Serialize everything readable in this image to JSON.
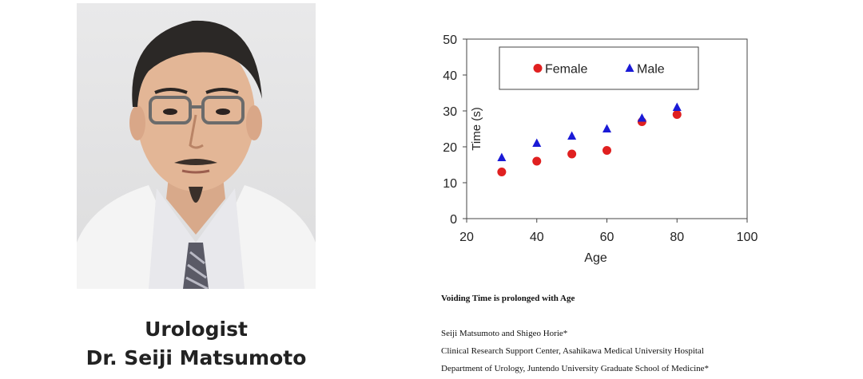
{
  "portrait": {
    "caption_line1": "Urologist",
    "caption_line2": "Dr. Seiji Matsumoto"
  },
  "chart_data": {
    "type": "scatter",
    "title": "",
    "xlabel": "Age",
    "ylabel": "Time (s)",
    "xlim": [
      20,
      100
    ],
    "ylim": [
      0,
      50
    ],
    "xticks": [
      20,
      40,
      60,
      80,
      100
    ],
    "yticks": [
      0,
      10,
      20,
      30,
      40,
      50
    ],
    "grid": false,
    "legend_position": "top",
    "series": [
      {
        "name": "Female",
        "marker": "circle",
        "color": "#e02020",
        "points": [
          [
            30,
            13
          ],
          [
            40,
            16
          ],
          [
            50,
            18
          ],
          [
            60,
            19
          ],
          [
            70,
            27
          ],
          [
            80,
            29
          ]
        ]
      },
      {
        "name": "Male",
        "marker": "triangle",
        "color": "#1a1ad6",
        "points": [
          [
            30,
            17
          ],
          [
            40,
            21
          ],
          [
            50,
            23
          ],
          [
            60,
            25
          ],
          [
            70,
            28
          ],
          [
            80,
            31
          ]
        ]
      }
    ]
  },
  "paper": {
    "title": "Voiding Time is prolonged with Age",
    "authors": "Seiji Matsumoto and Shigeo Horie*",
    "affiliation1": "Clinical Research Support Center, Asahikawa Medical University Hospital",
    "affiliation2": "Department of Urology, Juntendo University Graduate School of Medicine*"
  }
}
